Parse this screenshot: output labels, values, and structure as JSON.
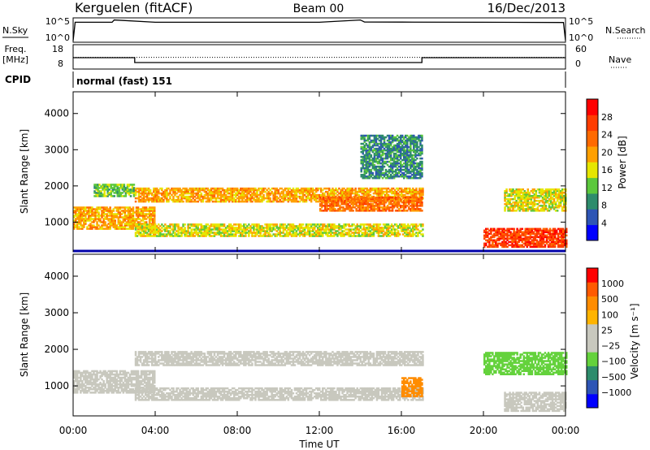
{
  "header": {
    "station": "Kerguelen (fitACF)",
    "beam": "Beam 00",
    "date": "16/Dec/2013"
  },
  "sky_panel": {
    "left_label": "N.Sky",
    "right_label": "N.Search",
    "ticks_left": [
      "10^5",
      "10^0"
    ],
    "ticks_right": [
      "10^5",
      "10^0"
    ]
  },
  "freq_panel": {
    "left_label_1": "Freq.",
    "left_label_2": "[MHz]",
    "right_label": "Nave",
    "ticks_left": [
      "18",
      "8"
    ],
    "ticks_right": [
      "60",
      "0"
    ]
  },
  "cpid": {
    "label": "CPID",
    "value": "normal (fast) 151"
  },
  "colors": {
    "power_scale": [
      "#0000ff",
      "#2e55b5",
      "#2e8c6c",
      "#5cc83c",
      "#e6e600",
      "#ffa000",
      "#ff6a00",
      "#ff3c00",
      "#ff0000"
    ],
    "velocity_scale": [
      "#ff0000",
      "#ff5a00",
      "#ff8c00",
      "#ffb400",
      "#c8c8be",
      "#c8c8be",
      "#64d23c",
      "#2e8c6c",
      "#2e55b5",
      "#0000ff"
    ],
    "ground_scatter": "#c8c8be"
  },
  "chart_data": [
    {
      "type": "line",
      "name": "sky-noise",
      "x": [
        0,
        0.1,
        1.9,
        2.0,
        4,
        8,
        12,
        14,
        14.2,
        16,
        20,
        23.9,
        24
      ],
      "y": [
        1,
        50000,
        50000,
        200000,
        50000,
        50000,
        50000,
        200000,
        60000,
        55000,
        50000,
        45000,
        1
      ],
      "scale": "log",
      "xlim": [
        0,
        24
      ],
      "ylim": [
        1,
        100000
      ]
    },
    {
      "type": "line",
      "name": "frequency",
      "x": [
        0,
        3,
        3,
        17,
        17,
        24
      ],
      "y": [
        13,
        13,
        10.5,
        10.5,
        13,
        13
      ],
      "ylim": [
        8,
        18
      ],
      "second_series": {
        "name": "nave",
        "x": [
          0,
          24
        ],
        "y": [
          31,
          31
        ],
        "ylim": [
          0,
          60
        ]
      }
    },
    {
      "type": "heatmap",
      "name": "power",
      "ylabel": "Slant Range [km]",
      "colorbar_label": "Power [dB]",
      "colorbar_ticks": [
        "4",
        "8",
        "12",
        "16",
        "20",
        "24",
        "28"
      ],
      "xlim": [
        0,
        24
      ],
      "ylim": [
        180,
        4600
      ],
      "yticks": [
        "1000",
        "2000",
        "3000",
        "4000"
      ],
      "bands": [
        {
          "t0": 0,
          "t1": 4,
          "r0": 800,
          "r1": 1400,
          "level": 5
        },
        {
          "t0": 1,
          "t1": 3,
          "r0": 1700,
          "r1": 2050,
          "level": 3
        },
        {
          "t0": 3,
          "t1": 17,
          "r0": 1550,
          "r1": 1950,
          "level": 5
        },
        {
          "t0": 3,
          "t1": 17,
          "r0": 600,
          "r1": 950,
          "level": 4
        },
        {
          "t0": 12,
          "t1": 17,
          "r0": 1300,
          "r1": 1700,
          "level": 6
        },
        {
          "t0": 14,
          "t1": 17,
          "r0": 2200,
          "r1": 3400,
          "level": 2
        },
        {
          "t0": 20,
          "t1": 24,
          "r0": 300,
          "r1": 800,
          "level": 7
        },
        {
          "t0": 21,
          "t1": 24,
          "r0": 1300,
          "r1": 1900,
          "level": 4
        }
      ]
    },
    {
      "type": "heatmap",
      "name": "velocity",
      "ylabel": "Slant Range [km]",
      "xlabel": "Time UT",
      "colorbar_label": "Velocity [m s⁻¹]",
      "colorbar_ticks": [
        "1000",
        "500",
        "100",
        "25",
        "−25",
        "−100",
        "−500",
        "−1000"
      ],
      "xlim": [
        0,
        24
      ],
      "ylim": [
        180,
        4600
      ],
      "yticks": [
        "1000",
        "2000",
        "3000",
        "4000"
      ],
      "xticks": [
        "00:00",
        "04:00",
        "08:00",
        "12:00",
        "16:00",
        "20:00",
        "00:00"
      ],
      "bands": [
        {
          "t0": 0,
          "t1": 4,
          "r0": 800,
          "r1": 1400,
          "level": 4
        },
        {
          "t0": 3,
          "t1": 17,
          "r0": 1550,
          "r1": 1950,
          "level": 4
        },
        {
          "t0": 3,
          "t1": 17,
          "r0": 600,
          "r1": 950,
          "level": 4
        },
        {
          "t0": 16,
          "t1": 17,
          "r0": 700,
          "r1": 1200,
          "level": 2
        },
        {
          "t0": 20,
          "t1": 24,
          "r0": 1300,
          "r1": 1900,
          "level": 6
        },
        {
          "t0": 21,
          "t1": 24,
          "r0": 300,
          "r1": 800,
          "level": 4
        }
      ]
    }
  ]
}
